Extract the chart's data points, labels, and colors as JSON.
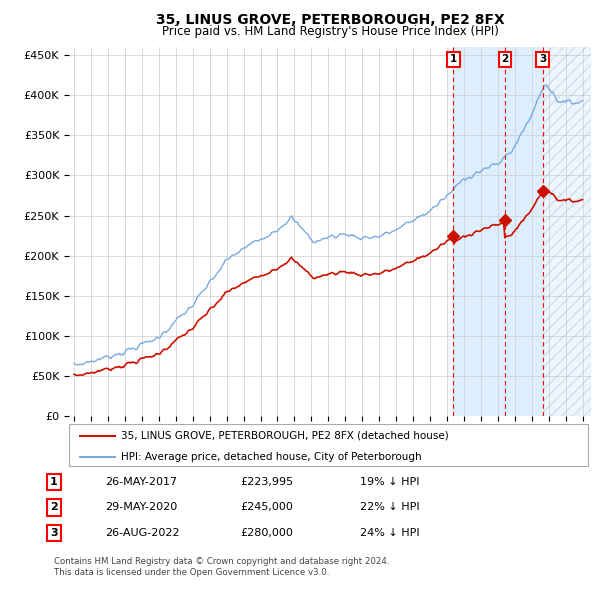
{
  "title": "35, LINUS GROVE, PETERBOROUGH, PE2 8FX",
  "subtitle": "Price paid vs. HM Land Registry's House Price Index (HPI)",
  "legend_line1": "35, LINUS GROVE, PETERBOROUGH, PE2 8FX (detached house)",
  "legend_line2": "HPI: Average price, detached house, City of Peterborough",
  "footer1": "Contains HM Land Registry data © Crown copyright and database right 2024.",
  "footer2": "This data is licensed under the Open Government Licence v3.0.",
  "sale_prices": [
    223995,
    245000,
    280000
  ],
  "sale_labels": [
    "1",
    "2",
    "3"
  ],
  "sale_table": [
    {
      "label": "1",
      "date": "26-MAY-2017",
      "price": "£223,995",
      "pct": "19% ↓ HPI"
    },
    {
      "label": "2",
      "date": "29-MAY-2020",
      "price": "£245,000",
      "pct": "22% ↓ HPI"
    },
    {
      "label": "3",
      "date": "26-AUG-2022",
      "price": "£280,000",
      "pct": "24% ↓ HPI"
    }
  ],
  "sale_times": [
    2017.38,
    2020.41,
    2022.64
  ],
  "hpi_color": "#7aaadd",
  "price_color": "#cc1100",
  "grid_color": "#cccccc",
  "shade_color": "#ddeeff",
  "bg_color": "#ffffff",
  "ylim": [
    0,
    460000
  ],
  "yticks": [
    0,
    50000,
    100000,
    150000,
    200000,
    250000,
    300000,
    350000,
    400000,
    450000
  ],
  "ytick_labels": [
    "£0",
    "£50K",
    "£100K",
    "£150K",
    "£200K",
    "£250K",
    "£300K",
    "£350K",
    "£400K",
    "£450K"
  ],
  "xlim_start": 1994.7,
  "xlim_end": 2025.5
}
